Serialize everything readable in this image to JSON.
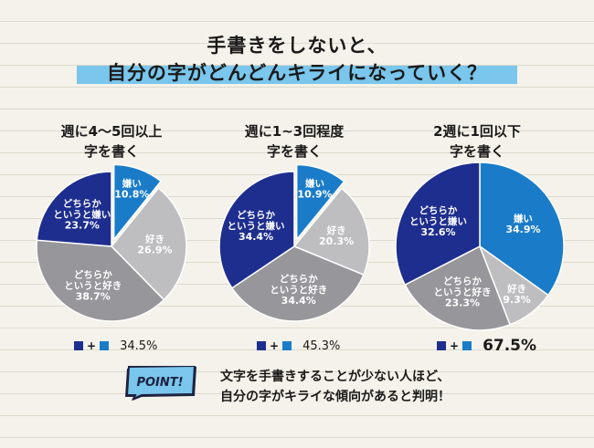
{
  "header": {
    "title_line1": "手書きをしないと、",
    "title_line2": "自分の字がどんどんキライになっていく？"
  },
  "colors": {
    "dislike": "#1a7cc9",
    "somewhat_dislike": "#1e2e8e",
    "somewhat_like": "#97979b",
    "like": "#bebec1"
  },
  "chart_data": [
    {
      "type": "pie",
      "title": "週に4～5回以上",
      "subtitle": "字を書く",
      "categories": [
        "嫌い",
        "好き",
        "どちらか\nというと好き",
        "どちらか\nというと嫌い"
      ],
      "values": [
        10.8,
        26.9,
        38.7,
        23.7
      ],
      "value_labels": [
        "10.8%",
        "26.9%",
        "38.7%",
        "23.7%"
      ],
      "summary_label": "34.5%"
    },
    {
      "type": "pie",
      "title": "週に1~3回程度",
      "subtitle": "字を書く",
      "categories": [
        "嫌い",
        "好き",
        "どちらか\nというと好き",
        "どちらか\nというと嫌い"
      ],
      "values": [
        10.9,
        20.3,
        34.4,
        34.4
      ],
      "value_labels": [
        "10.9%",
        "20.3%",
        "34.4%",
        "34.4%"
      ],
      "summary_label": "45.3%"
    },
    {
      "type": "pie",
      "title": "2週に1回以下",
      "subtitle": "字を書く",
      "categories": [
        "嫌い",
        "好き",
        "どちらか\nというと好き",
        "どちらか\nというと嫌い"
      ],
      "values": [
        34.9,
        9.3,
        23.3,
        32.6
      ],
      "value_labels": [
        "34.9%",
        "9.3%",
        "23.3%",
        "32.6%"
      ],
      "summary_label": "67.5%"
    }
  ],
  "summary": {
    "plus": "+"
  },
  "point": {
    "badge": "POINT!",
    "line1": "文字を手書きすることが少ない人ほど、",
    "line2": "自分の字がキライな傾向があると判明！"
  }
}
